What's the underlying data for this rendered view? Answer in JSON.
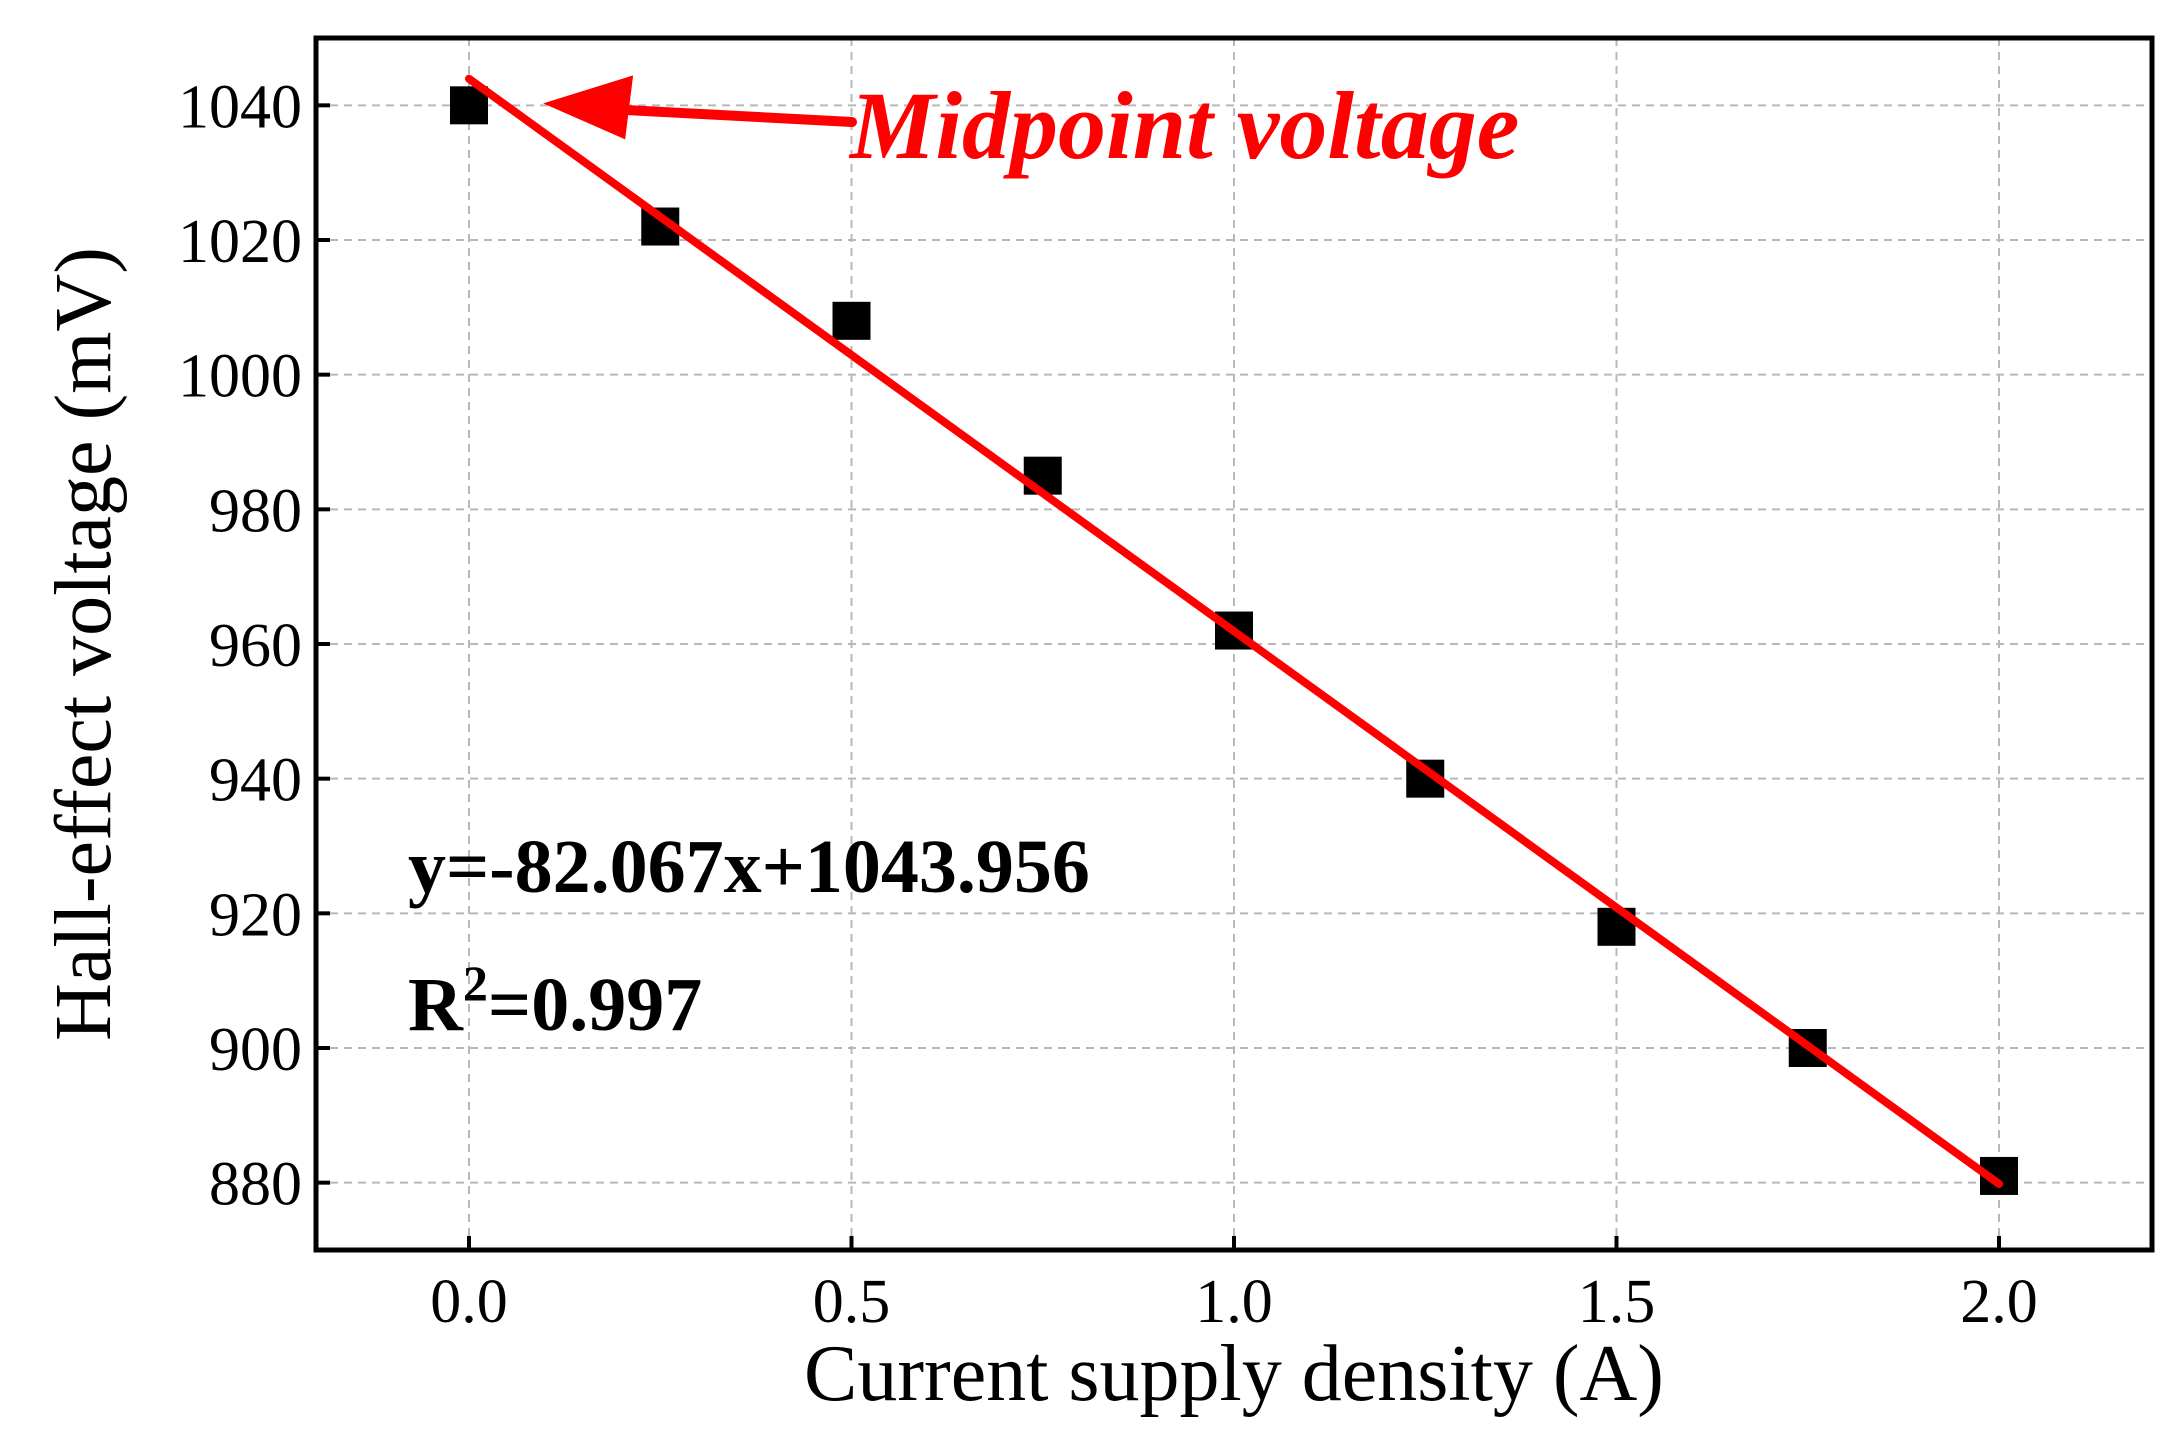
{
  "chart_data": {
    "type": "scatter",
    "xlabel": "Current supply density (A)",
    "ylabel": "Hall-effect voltage (mV)",
    "xlim": [
      -0.2,
      2.2
    ],
    "ylim": [
      870,
      1050
    ],
    "xticks": [
      0.0,
      0.5,
      1.0,
      1.5,
      2.0
    ],
    "xtick_labels": [
      "0.0",
      "0.5",
      "1.0",
      "1.5",
      "2.0"
    ],
    "yticks": [
      880,
      900,
      920,
      940,
      960,
      980,
      1000,
      1020,
      1040
    ],
    "ytick_labels": [
      "880",
      "900",
      "920",
      "940",
      "960",
      "980",
      "1000",
      "1020",
      "1040"
    ],
    "grid": true,
    "series": [
      {
        "marker": "square",
        "color": "#000000",
        "x": [
          0.0,
          0.25,
          0.5,
          0.75,
          1.0,
          1.25,
          1.5,
          1.75,
          2.0
        ],
        "y": [
          1040,
          1022,
          1008,
          985,
          962,
          940,
          918,
          900,
          881
        ]
      }
    ],
    "fit_line": {
      "slope": -82.067,
      "intercept": 1043.956,
      "x_range": [
        0.0,
        2.0
      ],
      "color": "#ff0000"
    },
    "annotations": {
      "equation": "y=-82.067x+1043.956",
      "r_squared_prefix": "R",
      "r_squared_sup": "2",
      "r_squared_value": "=0.997",
      "arrow_label": "Midpoint voltage",
      "arrow_color": "#ff0000",
      "arrow_target": [
        0.11,
        1040
      ]
    }
  }
}
